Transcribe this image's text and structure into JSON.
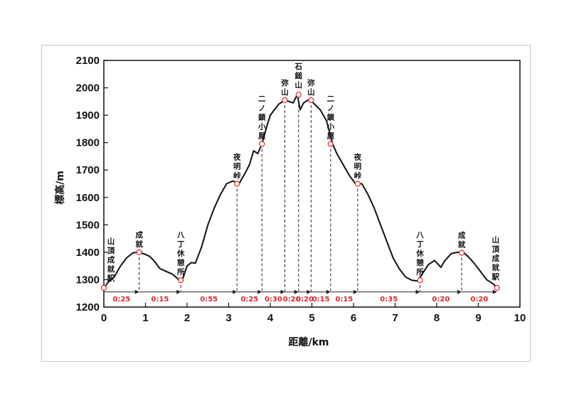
{
  "chart_data": {
    "type": "line",
    "xlabel": "距離/km",
    "ylabel": "標高/m",
    "xlim": [
      0,
      10
    ],
    "ylim": [
      1200,
      2100
    ],
    "xticks": [
      "0",
      "1",
      "2",
      "3",
      "4",
      "5",
      "6",
      "7",
      "8",
      "9",
      "10"
    ],
    "yticks": [
      "1200",
      "1300",
      "1400",
      "1500",
      "1600",
      "1700",
      "1800",
      "1900",
      "2000",
      "2100"
    ],
    "grid": false,
    "series": [
      {
        "x": [
          0,
          0.1,
          0.25,
          0.4,
          0.55,
          0.7,
          0.85,
          1.0,
          1.1,
          1.2,
          1.35,
          1.5,
          1.65,
          1.8,
          1.9,
          2.0,
          2.1,
          2.2,
          2.35,
          2.5,
          2.65,
          2.8,
          2.95,
          3.1,
          3.25,
          3.4,
          3.5,
          3.6,
          3.7,
          3.8,
          3.9,
          4.0,
          4.1,
          4.2,
          4.35,
          4.45,
          4.55,
          4.65,
          4.72,
          4.8,
          4.9,
          5.0,
          5.1,
          5.2,
          5.35,
          5.5,
          5.6,
          5.75,
          5.9,
          6.05,
          6.2,
          6.35,
          6.5,
          6.65,
          6.8,
          6.95,
          7.1,
          7.25,
          7.4,
          7.55,
          7.65,
          7.8,
          7.95,
          8.1,
          8.2,
          8.35,
          8.5,
          8.65,
          8.75,
          8.9,
          9.05,
          9.2,
          9.35,
          9.45
        ],
        "y": [
          1270,
          1290,
          1310,
          1350,
          1380,
          1398,
          1400,
          1392,
          1385,
          1370,
          1340,
          1330,
          1320,
          1300,
          1305,
          1350,
          1362,
          1360,
          1420,
          1500,
          1560,
          1610,
          1650,
          1660,
          1650,
          1690,
          1720,
          1770,
          1760,
          1795,
          1850,
          1900,
          1920,
          1940,
          1955,
          1950,
          1945,
          1975,
          1920,
          1945,
          1955,
          1950,
          1935,
          1920,
          1880,
          1795,
          1760,
          1720,
          1680,
          1650,
          1650,
          1610,
          1560,
          1500,
          1440,
          1380,
          1340,
          1310,
          1298,
          1295,
          1320,
          1355,
          1370,
          1345,
          1370,
          1395,
          1400,
          1398,
          1385,
          1360,
          1330,
          1300,
          1285,
          1270
        ]
      }
    ],
    "waypoints": [
      {
        "x": 0,
        "y": 1270,
        "label": "山頂成就駅"
      },
      {
        "x": 0.85,
        "y": 1400,
        "label": "成就"
      },
      {
        "x": 1.85,
        "y": 1298,
        "label": "八丁休憩所"
      },
      {
        "x": 3.2,
        "y": 1650,
        "label": "夜明峠"
      },
      {
        "x": 3.8,
        "y": 1795,
        "label": "二ノ鎖小屋"
      },
      {
        "x": 4.35,
        "y": 1955,
        "label": "弥山"
      },
      {
        "x": 4.68,
        "y": 1975,
        "label": "石鎚山"
      },
      {
        "x": 4.98,
        "y": 1955,
        "label": "弥山"
      },
      {
        "x": 5.45,
        "y": 1795,
        "label": "二ノ鎖小屋"
      },
      {
        "x": 6.1,
        "y": 1650,
        "label": "夜明峠"
      },
      {
        "x": 7.6,
        "y": 1298,
        "label": "八丁休憩所"
      },
      {
        "x": 8.6,
        "y": 1398,
        "label": "成就"
      },
      {
        "x": 9.45,
        "y": 1270,
        "label": "山頂成就駅"
      }
    ],
    "segment_times": [
      "0:25",
      "0:15",
      "0:55",
      "0:25",
      "0:30",
      "0:20",
      "0:20",
      "0:15",
      "0:15",
      "0:35",
      "0:20",
      "0:20"
    ],
    "colors": {
      "line": "#111111",
      "marker": "#e0252b",
      "time_text": "#e0252b"
    }
  }
}
